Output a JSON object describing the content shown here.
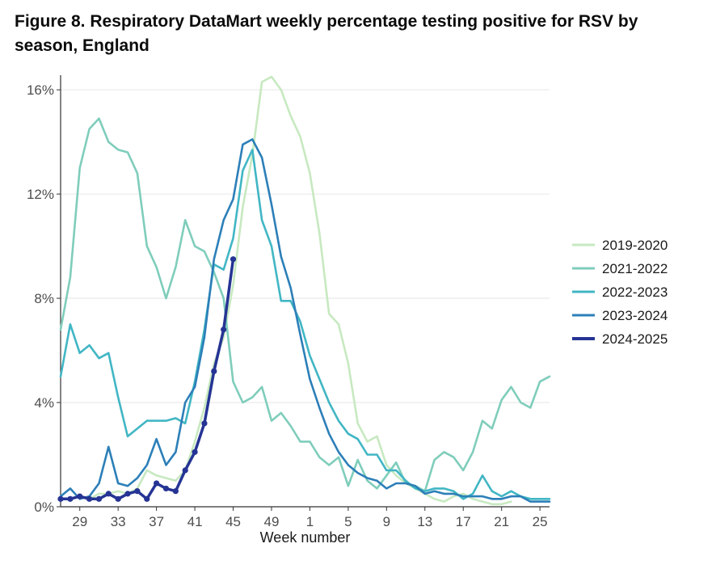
{
  "title": "Figure 8. Respiratory DataMart weekly percentage testing positive for RSV by season, England",
  "chart_data": {
    "type": "line",
    "title": "Figure 8. Respiratory DataMart weekly percentage testing positive for RSV by season, England",
    "xlabel": "Week number",
    "ylabel": "",
    "x": [
      27,
      28,
      29,
      30,
      31,
      32,
      33,
      34,
      35,
      36,
      37,
      38,
      39,
      40,
      41,
      42,
      43,
      44,
      45,
      46,
      47,
      48,
      49,
      50,
      51,
      52,
      1,
      2,
      3,
      4,
      5,
      6,
      7,
      8,
      9,
      10,
      11,
      12,
      13,
      14,
      15,
      16,
      17,
      18,
      19,
      20,
      21,
      22,
      23,
      24,
      25,
      26
    ],
    "x_tick_labels": [
      "29",
      "33",
      "37",
      "41",
      "45",
      "49",
      "1",
      "5",
      "9",
      "13",
      "17",
      "21",
      "25"
    ],
    "y_tick_labels": [
      "0%",
      "4%",
      "8%",
      "12%",
      "16%"
    ],
    "ylim": [
      0,
      16.5
    ],
    "grid": "horizontal",
    "legend_position": "right",
    "series": [
      {
        "name": "2019-2020",
        "color": "#c7e9c0",
        "values": [
          0.3,
          0.3,
          0.4,
          0.3,
          0.5,
          0.5,
          0.6,
          0.5,
          0.7,
          1.4,
          1.2,
          1.1,
          1.0,
          1.4,
          2.5,
          3.8,
          5.5,
          6.5,
          8.5,
          11.5,
          13.5,
          16.3,
          16.5,
          16.0,
          15.0,
          14.2,
          12.8,
          10.5,
          7.4,
          7.0,
          5.5,
          3.2,
          2.5,
          2.7,
          1.6,
          1.2,
          0.9,
          0.7,
          0.5,
          0.3,
          0.2,
          0.4,
          0.5,
          0.3,
          0.2,
          0.1,
          0.1,
          0.2,
          null,
          null,
          null,
          null
        ]
      },
      {
        "name": "2021-2022",
        "color": "#7fcdbb",
        "values": [
          6.8,
          8.8,
          13.0,
          14.5,
          14.9,
          14.0,
          13.7,
          13.6,
          12.8,
          10.0,
          9.2,
          8.0,
          9.2,
          11.0,
          10.0,
          9.8,
          9.0,
          8.0,
          4.8,
          4.0,
          4.2,
          4.6,
          3.3,
          3.6,
          3.1,
          2.5,
          2.5,
          1.9,
          1.6,
          1.9,
          0.8,
          1.8,
          1.0,
          0.7,
          1.2,
          1.7,
          0.9,
          0.8,
          0.6,
          1.8,
          2.1,
          1.9,
          1.4,
          2.1,
          3.3,
          3.0,
          4.1,
          4.6,
          4.0,
          3.8,
          4.8,
          5.0
        ]
      },
      {
        "name": "2022-2023",
        "color": "#41b6c4",
        "values": [
          5.0,
          7.0,
          5.9,
          6.2,
          5.7,
          5.9,
          4.2,
          2.7,
          3.0,
          3.3,
          3.3,
          3.3,
          3.4,
          3.2,
          4.8,
          6.8,
          9.3,
          9.1,
          10.3,
          12.9,
          13.7,
          11.0,
          10.0,
          7.9,
          7.9,
          7.1,
          5.8,
          4.9,
          4.0,
          3.3,
          2.8,
          2.6,
          2.0,
          2.0,
          1.4,
          1.4,
          1.0,
          0.7,
          0.6,
          0.7,
          0.7,
          0.6,
          0.3,
          0.5,
          1.2,
          0.6,
          0.4,
          0.6,
          0.4,
          0.3,
          0.3,
          0.3
        ]
      },
      {
        "name": "2023-2024",
        "color": "#2c7fb8",
        "values": [
          0.4,
          0.7,
          0.3,
          0.4,
          0.9,
          2.3,
          0.9,
          0.8,
          1.1,
          1.6,
          2.6,
          1.6,
          2.1,
          4.0,
          4.6,
          6.5,
          9.5,
          11.0,
          11.8,
          13.9,
          14.1,
          13.4,
          11.6,
          9.6,
          8.4,
          6.6,
          4.9,
          3.8,
          2.8,
          2.1,
          1.6,
          1.3,
          1.1,
          1.0,
          0.7,
          0.9,
          0.9,
          0.8,
          0.5,
          0.6,
          0.5,
          0.5,
          0.4,
          0.4,
          0.4,
          0.3,
          0.3,
          0.4,
          0.4,
          0.2,
          0.2,
          0.2
        ]
      },
      {
        "name": "2024-2025",
        "color": "#253494",
        "values": [
          0.3,
          0.3,
          0.4,
          0.3,
          0.3,
          0.5,
          0.3,
          0.5,
          0.6,
          0.3,
          0.9,
          0.7,
          0.6,
          1.4,
          2.1,
          3.2,
          5.2,
          6.8,
          9.5,
          null,
          null,
          null,
          null,
          null,
          null,
          null,
          null,
          null,
          null,
          null,
          null,
          null,
          null,
          null,
          null,
          null,
          null,
          null,
          null,
          null,
          null,
          null,
          null,
          null,
          null,
          null,
          null,
          null,
          null,
          null,
          null,
          null
        ],
        "markers": true
      }
    ]
  }
}
